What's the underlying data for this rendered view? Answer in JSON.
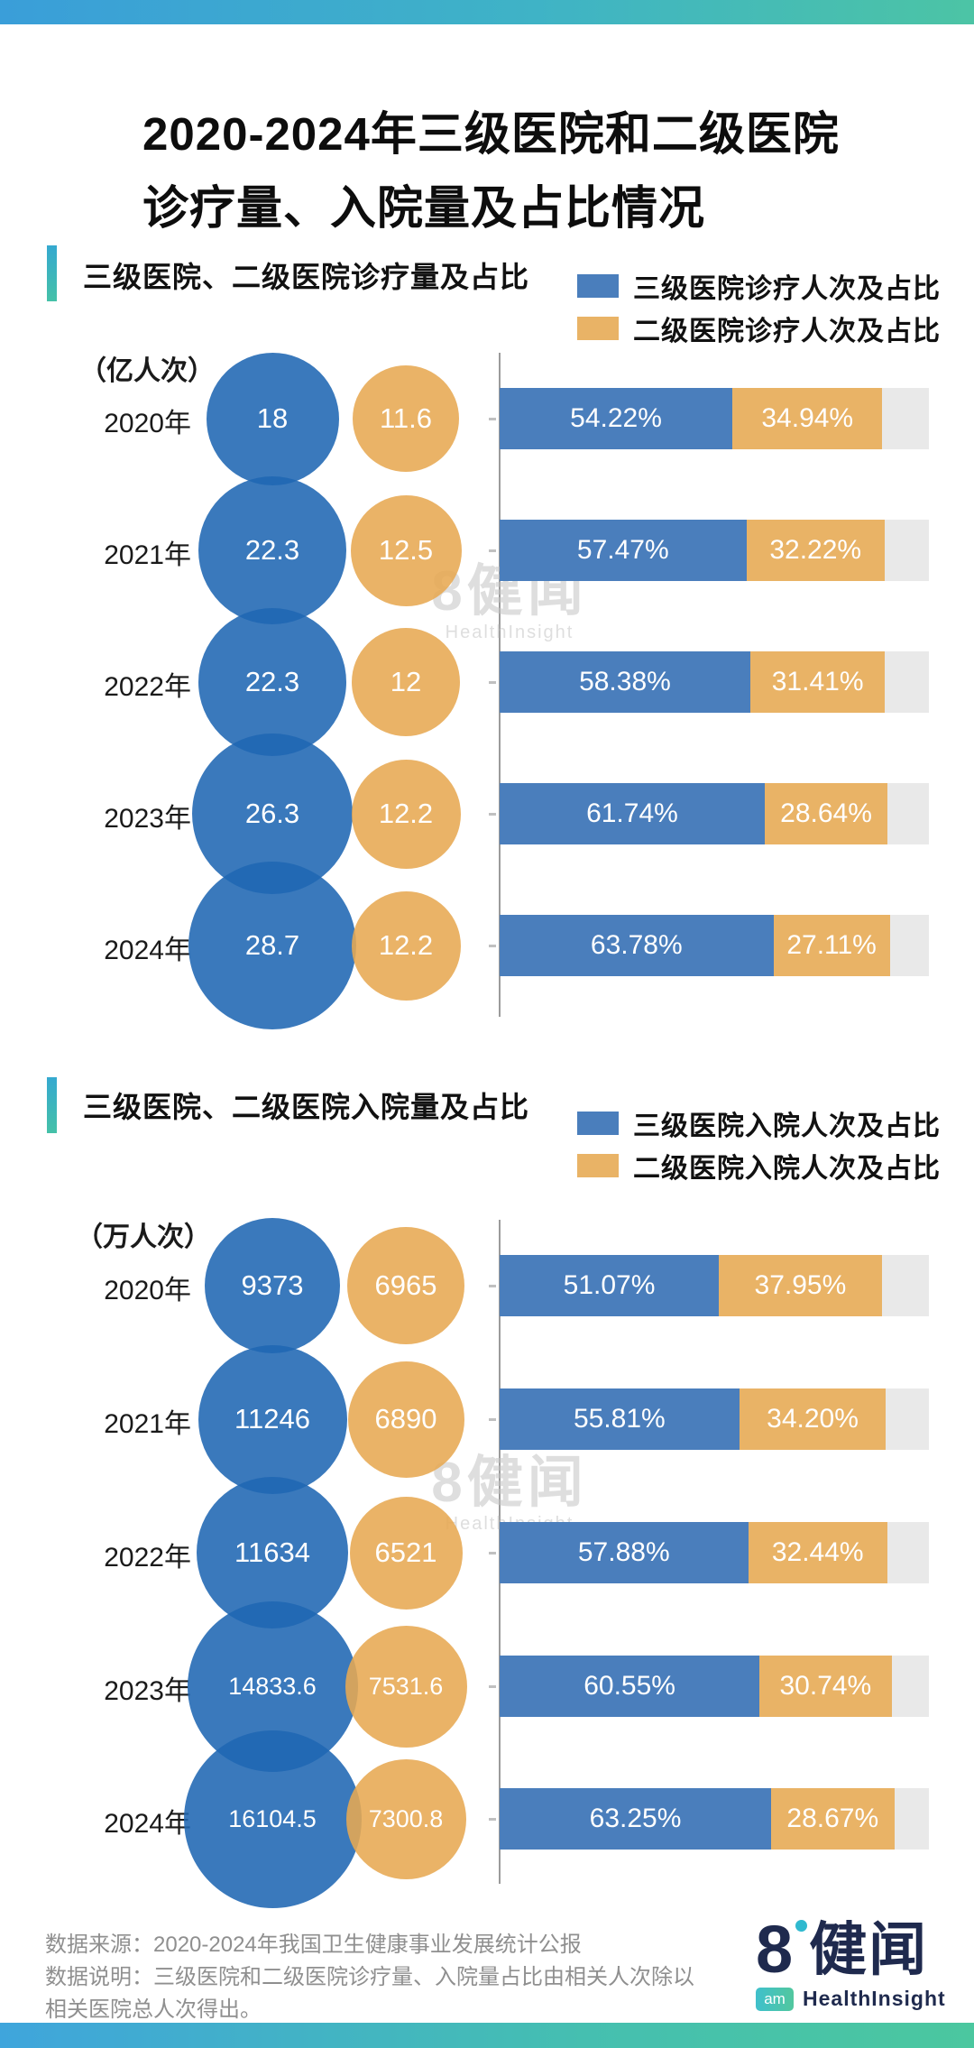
{
  "page": {
    "title_line1": "2020-2024年三级医院和二级医院",
    "title_line2": "诊疗量、入院量及占比情况"
  },
  "colors": {
    "tertiary_blue": "#4A7EBC",
    "secondary_orange": "#E9B366",
    "track_gray": "#E9E9E9",
    "accent_teal": "#3BB7C4",
    "topbar_left": "#3A9ED9",
    "topbar_right": "#4CC4A5",
    "footer_text": "#8F8F8F",
    "logo_navy": "#1F2A4E"
  },
  "watermark": {
    "brand": "8健闻",
    "subtitle": "HealthInsight"
  },
  "footer": {
    "source": "数据来源：2020-2024年我国卫生健康事业发展统计公报",
    "note": "数据说明：三级医院和二级医院诊疗量、入院量占比由相关人次除以相关医院总人次得出。"
  },
  "logo": {
    "eight": "8",
    "wordmark": "健闻",
    "badge": "am",
    "subtitle": "HealthInsight"
  },
  "chart_data": [
    {
      "type": "bar",
      "title": "三级医院、二级医院诊疗量及占比",
      "unit_label": "（亿人次）",
      "legend": [
        "三级医院诊疗人次及占比",
        "二级医院诊疗人次及占比"
      ],
      "legend_position": "top-right",
      "categories": [
        "2020年",
        "2021年",
        "2022年",
        "2023年",
        "2024年"
      ],
      "xlim_share": [
        0,
        100
      ],
      "series": [
        {
          "name": "三级医院诊疗人次",
          "unit": "亿人次",
          "role": "bubble-blue",
          "values": [
            18,
            22.3,
            22.3,
            26.3,
            28.7
          ],
          "labels": [
            "18",
            "22.3",
            "22.3",
            "26.3",
            "28.7"
          ]
        },
        {
          "name": "二级医院诊疗人次",
          "unit": "亿人次",
          "role": "bubble-orange",
          "values": [
            11.6,
            12.5,
            12,
            12.2,
            12.2
          ],
          "labels": [
            "11.6",
            "12.5",
            "12",
            "12.2",
            "12.2"
          ]
        },
        {
          "name": "三级医院诊疗人次占比",
          "unit": "%",
          "role": "bar-blue",
          "values": [
            54.22,
            57.47,
            58.38,
            61.74,
            63.78
          ],
          "labels": [
            "54.22%",
            "57.47%",
            "58.38%",
            "61.74%",
            "63.78%"
          ]
        },
        {
          "name": "二级医院诊疗人次占比",
          "unit": "%",
          "role": "bar-orange",
          "values": [
            34.94,
            32.22,
            31.41,
            28.64,
            27.11
          ],
          "labels": [
            "34.94%",
            "32.22%",
            "31.41%",
            "28.64%",
            "27.11%"
          ]
        }
      ]
    },
    {
      "type": "bar",
      "title": "三级医院、二级医院入院量及占比",
      "unit_label": "（万人次）",
      "legend": [
        "三级医院入院人次及占比",
        "二级医院入院人次及占比"
      ],
      "legend_position": "top-right",
      "categories": [
        "2020年",
        "2021年",
        "2022年",
        "2023年",
        "2024年"
      ],
      "xlim_share": [
        0,
        100
      ],
      "series": [
        {
          "name": "三级医院入院人次",
          "unit": "万人次",
          "role": "bubble-blue",
          "values": [
            9373,
            11246,
            11634,
            14833.6,
            16104.5
          ],
          "labels": [
            "9373",
            "11246",
            "11634",
            "14833.6",
            "16104.5"
          ]
        },
        {
          "name": "二级医院入院人次",
          "unit": "万人次",
          "role": "bubble-orange",
          "values": [
            6965,
            6890,
            6521,
            7531.6,
            7300.8
          ],
          "labels": [
            "6965",
            "6890",
            "6521",
            "7531.6",
            "7300.8"
          ]
        },
        {
          "name": "三级医院入院人次占比",
          "unit": "%",
          "role": "bar-blue",
          "values": [
            51.07,
            55.81,
            57.88,
            60.55,
            63.25
          ],
          "labels": [
            "51.07%",
            "55.81%",
            "57.88%",
            "60.55%",
            "63.25%"
          ]
        },
        {
          "name": "二级医院入院人次占比",
          "unit": "%",
          "role": "bar-orange",
          "values": [
            37.95,
            34.2,
            32.44,
            30.74,
            28.67
          ],
          "labels": [
            "37.95%",
            "34.20%",
            "32.44%",
            "30.74%",
            "28.67%"
          ]
        }
      ]
    }
  ]
}
